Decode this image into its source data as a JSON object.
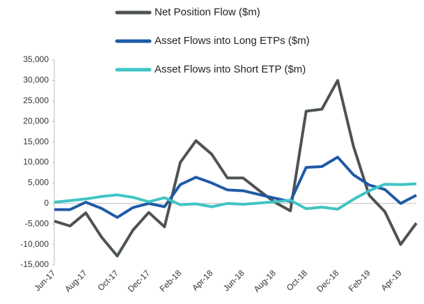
{
  "chart_data": {
    "type": "line",
    "categories": [
      "Jun-17",
      null,
      "Aug-17",
      null,
      "Oct-17",
      null,
      "Dec-17",
      null,
      "Feb-18",
      null,
      "Apr-18",
      null,
      "Jun-18",
      null,
      "Aug-18",
      null,
      "Oct-18",
      null,
      "Dec-18",
      null,
      "Feb-19",
      null,
      "Apr-19",
      null
    ],
    "series": [
      {
        "name": "Net Position Flow ($m)",
        "color": "#4d5353",
        "values": [
          -4300,
          -5500,
          -2300,
          -8200,
          -12800,
          -6500,
          -2200,
          -5700,
          10000,
          15300,
          12000,
          6200,
          6200,
          3200,
          300,
          -1800,
          22500,
          23000,
          30000,
          14000,
          2000,
          -2000,
          -10000,
          -4800
        ]
      },
      {
        "name": "Asset Flows into Long ETPs ($m)",
        "color": "#1f5aa6",
        "values": [
          -1500,
          -1500,
          300,
          -1200,
          -3400,
          -1000,
          0,
          -800,
          4600,
          6400,
          5000,
          3300,
          3100,
          2200,
          1300,
          500,
          8800,
          9000,
          11300,
          7000,
          4500,
          3400,
          0,
          2000
        ]
      },
      {
        "name": "Asset Flows into Short ETP ($m)",
        "color": "#40c4c4",
        "values": [
          300,
          700,
          1100,
          1700,
          2100,
          1500,
          400,
          1400,
          -300,
          -100,
          -800,
          0,
          -200,
          100,
          400,
          800,
          -1300,
          -900,
          -1400,
          1000,
          3100,
          4700,
          4600,
          4800
        ]
      }
    ],
    "ylim": [
      -15000,
      35000
    ],
    "yticks": [
      {
        "value": -15000,
        "label": "-15,000"
      },
      {
        "value": -10000,
        "label": "-10,000"
      },
      {
        "value": -5000,
        "label": "-5,000"
      },
      0,
      {
        "value": 5000,
        "label": "5,000"
      },
      {
        "value": 10000,
        "label": "10,000"
      },
      {
        "value": 15000,
        "label": "15,000"
      },
      {
        "value": 20000,
        "label": "20,000"
      },
      {
        "value": 25000,
        "label": "25,000"
      },
      {
        "value": 30000,
        "label": "30,000"
      },
      {
        "value": 35000,
        "label": "35,000"
      }
    ],
    "grid": false
  }
}
